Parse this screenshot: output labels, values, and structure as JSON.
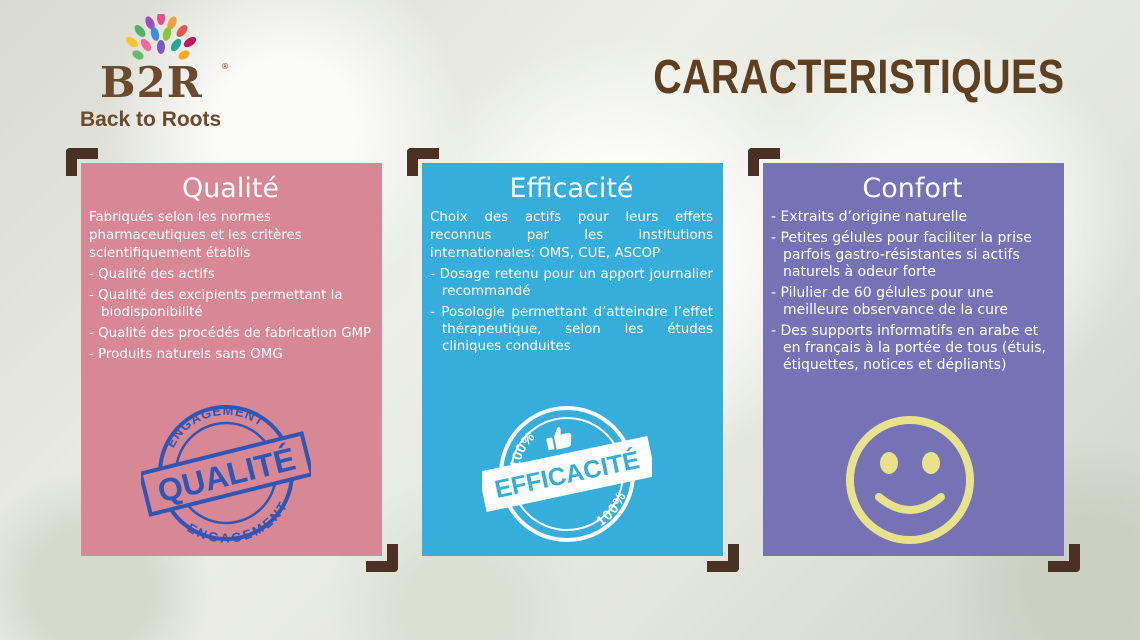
{
  "brand": {
    "mark": "B2R",
    "name": "Back to Roots",
    "registered": "®"
  },
  "page": {
    "title": "CARACTERISTIQUES"
  },
  "cards": {
    "qualite": {
      "title": "Qualité",
      "color": "#d88795",
      "intro": "Fabriqués selon les normes pharmaceutiques et les critères scientifiquement établis",
      "items": [
        "Qualité des actifs",
        "Qualité des excipients permettant la biodisponibilité",
        "Qualité des procédés de fabrication GMP",
        "Produits naturels sans OMG"
      ],
      "stamp": {
        "top_text": "ENGAGEMENT",
        "main_text": "QUALITÉ",
        "bottom_text": "ENGAGEMENT",
        "color": "#2e56b7"
      }
    },
    "efficacite": {
      "title": "Efficacité",
      "color": "#35aedb",
      "intro": "Choix des actifs pour leurs effets reconnus par les institutions internationales: OMS, CUE, ASCOP",
      "items": [
        "Dosage retenu pour un apport journalier recommandé",
        "Posologie permettant d’atteindre l’effet thérapeutique, selon les études cliniques conduites"
      ],
      "stamp": {
        "top_text": "100%",
        "main_text": "EFFICACITÉ",
        "bottom_text": "100%",
        "icon": "thumbs-up-icon",
        "color": "#ffffff"
      }
    },
    "confort": {
      "title": "Confort",
      "color": "#7572b6",
      "items": [
        "Extraits d’origine naturelle",
        "Petites gélules pour faciliter la prise parfois gastro-résistantes si actifs naturels à odeur forte",
        "Pilulier de 60 gélules pour une meilleure observance de la cure",
        "Des supports informatifs en arabe et en français à la portée de tous (étuis, étiquettes, notices et dépliants)"
      ],
      "icon": "smiley-icon",
      "icon_color": "#e8e38a"
    }
  }
}
